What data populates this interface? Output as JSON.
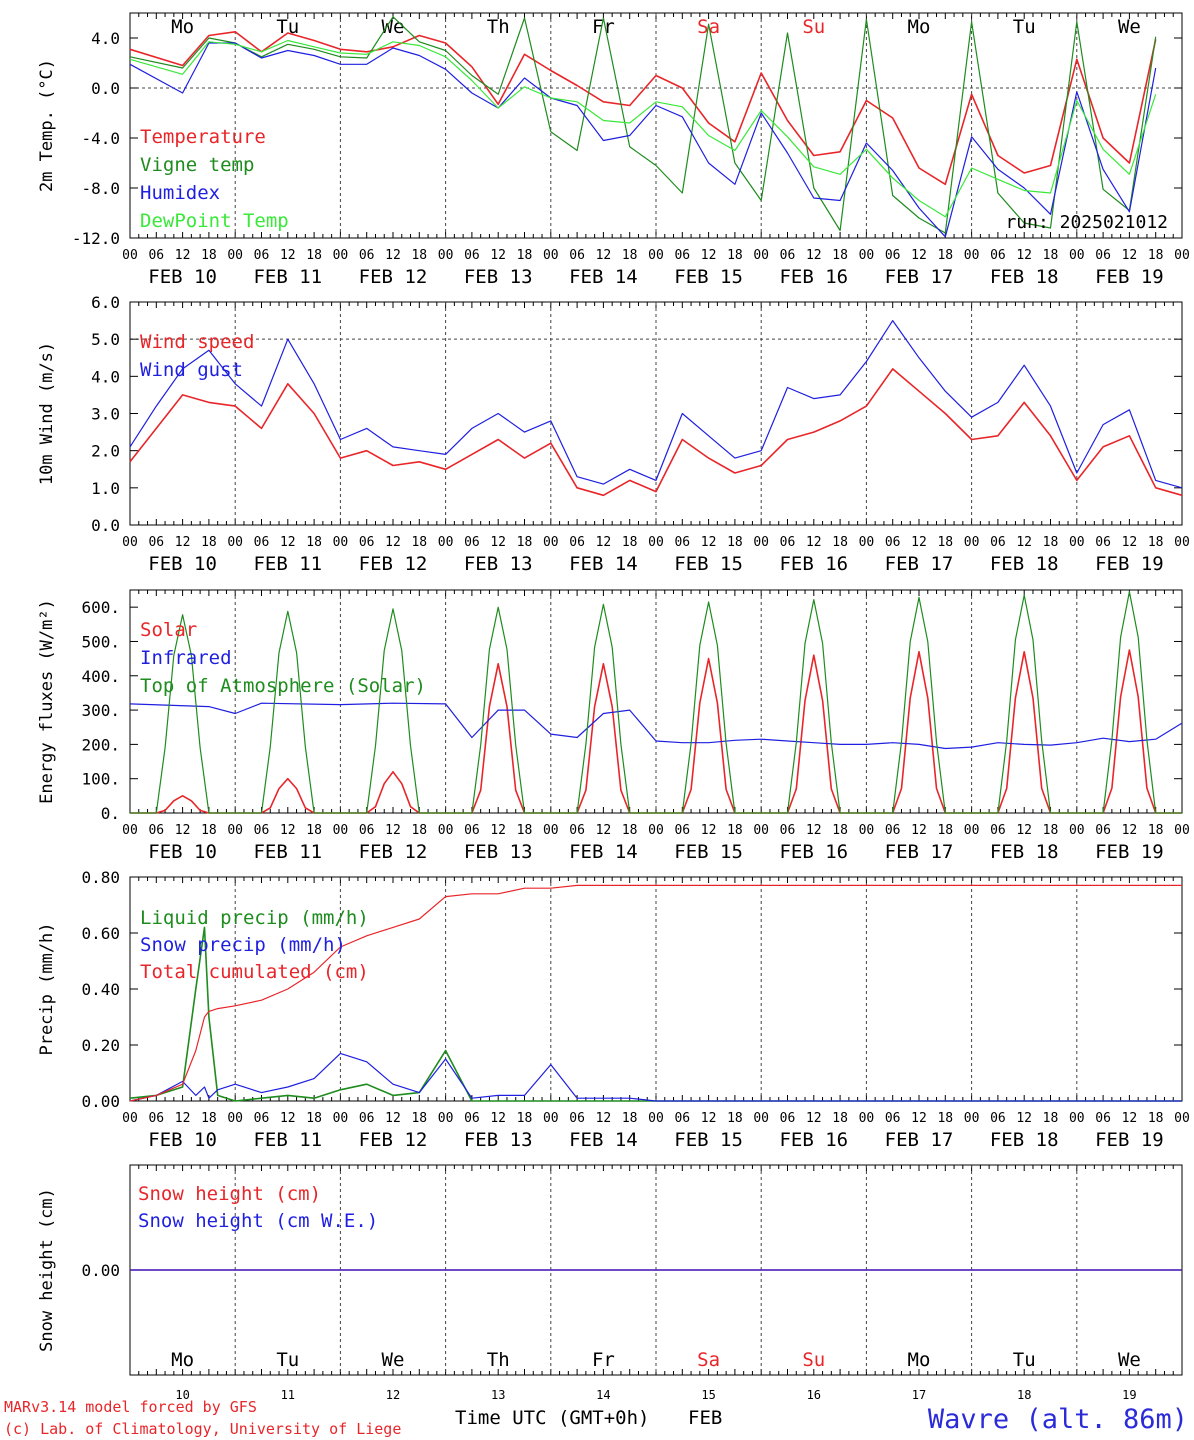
{
  "days": [
    "10",
    "11",
    "12",
    "13",
    "14",
    "15",
    "16",
    "17",
    "18",
    "19"
  ],
  "month": "FEB",
  "weekdays": [
    {
      "label": "Mo",
      "color": "#000000"
    },
    {
      "label": "Tu",
      "color": "#000000"
    },
    {
      "label": "We",
      "color": "#000000"
    },
    {
      "label": "Th",
      "color": "#000000"
    },
    {
      "label": "Fr",
      "color": "#000000"
    },
    {
      "label": "Sa",
      "color": "#e8262a"
    },
    {
      "label": "Su",
      "color": "#e8262a"
    },
    {
      "label": "Mo",
      "color": "#000000"
    },
    {
      "label": "Tu",
      "color": "#000000"
    },
    {
      "label": "We",
      "color": "#000000"
    }
  ],
  "hour_ticks": [
    "00",
    "06",
    "12",
    "18"
  ],
  "run_label": "run: 2025021012",
  "footer": {
    "credit_line1": "MARv3.14 model forced by GFS",
    "credit_line2": "(c) Lab. of Climatology, University of Liege",
    "xlabel": "Time UTC (GMT+0h)",
    "month_label": "FEB",
    "station": "Wavre (alt. 86m)"
  },
  "chart_data": [
    {
      "type": "line",
      "ylabel": "2m Temp. (°C)",
      "ylim": [
        -12,
        6
      ],
      "yticks": [
        "-12.0",
        "-8.0",
        "-4.0",
        "0.0",
        "4.0"
      ],
      "ref_line": 0,
      "x_hours": [
        0,
        12,
        18,
        24,
        30,
        36,
        42,
        48,
        54,
        60,
        66,
        72,
        78,
        84,
        90,
        96,
        102,
        108,
        114,
        120,
        126,
        132,
        138,
        144,
        150,
        156,
        162,
        168,
        174,
        180,
        186,
        192,
        198,
        204,
        210,
        216,
        222,
        228,
        234
      ],
      "series": [
        {
          "name": "Temperature",
          "color": "#e8262a",
          "values": [
            3.1,
            1.8,
            4.2,
            4.5,
            2.9,
            4.4,
            3.8,
            3.1,
            2.9,
            3.3,
            4.2,
            3.6,
            1.7,
            -1.3,
            2.7,
            1.4,
            0.2,
            -1.1,
            -1.4,
            1.0,
            0.0,
            -2.8,
            -4.3,
            1.2,
            -2.6,
            -5.4,
            -5.1,
            -1.0,
            -2.4,
            -6.4,
            -7.7,
            -0.5,
            -5.4,
            -6.8,
            -6.2,
            2.3,
            -4.0,
            -6.0,
            3.9
          ]
        },
        {
          "name": "Vigne temp",
          "color": "#1e8c1e",
          "values": [
            2.5,
            1.6,
            4.0,
            3.6,
            2.5,
            3.5,
            3.1,
            2.5,
            2.4,
            5.7,
            3.7,
            3.0,
            1.0,
            -0.5,
            5.6,
            -3.5,
            -5.0,
            5.6,
            -4.7,
            -6.2,
            -8.4,
            5.1,
            -6.0,
            -9.0,
            4.4,
            -8.0,
            -11.4,
            5.5,
            -8.6,
            -10.4,
            -11.6,
            5.3,
            -8.4,
            -10.8,
            -11.2,
            5.3,
            -8.1,
            -9.8,
            4.1
          ]
        },
        {
          "name": "Humidex",
          "color": "#1f1fe0",
          "values": [
            1.9,
            -0.4,
            3.6,
            3.6,
            2.4,
            3.0,
            2.6,
            1.9,
            1.9,
            3.2,
            2.6,
            1.5,
            -0.4,
            -1.6,
            0.8,
            -0.8,
            -1.4,
            -4.2,
            -3.8,
            -1.4,
            -2.3,
            -6.0,
            -7.7,
            -2.0,
            -5.2,
            -8.8,
            -9.0,
            -4.4,
            -6.6,
            -9.6,
            -11.9,
            -3.9,
            -6.5,
            -8.0,
            -10.1,
            -0.3,
            -6.5,
            -9.9,
            1.6
          ]
        },
        {
          "name": "DewPoint Temp",
          "color": "#3ae83a",
          "values": [
            2.3,
            1.1,
            3.7,
            3.5,
            2.9,
            3.8,
            3.3,
            2.8,
            2.7,
            3.7,
            3.4,
            2.5,
            0.6,
            -1.6,
            0.1,
            -0.8,
            -1.1,
            -2.6,
            -2.8,
            -1.1,
            -1.5,
            -3.8,
            -5.0,
            -1.8,
            -3.9,
            -6.3,
            -6.9,
            -4.9,
            -7.2,
            -9.0,
            -10.3,
            -6.4,
            -7.3,
            -8.2,
            -8.4,
            -1.0,
            -4.9,
            -6.9,
            -0.5
          ]
        }
      ]
    },
    {
      "type": "line",
      "ylabel": "10m Wind (m/s)",
      "ylim": [
        0,
        6
      ],
      "yticks": [
        "0.0",
        "1.0",
        "2.0",
        "3.0",
        "4.0",
        "5.0",
        "6.0"
      ],
      "ref_line": 5,
      "x_hours": [
        0,
        6,
        12,
        18,
        24,
        30,
        36,
        42,
        48,
        54,
        60,
        66,
        72,
        78,
        84,
        90,
        96,
        102,
        108,
        114,
        120,
        126,
        132,
        138,
        144,
        150,
        156,
        162,
        168,
        174,
        180,
        186,
        192,
        198,
        204,
        210,
        216,
        222,
        228,
        234,
        240
      ],
      "series": [
        {
          "name": "Wind speed",
          "color": "#e8262a",
          "values": [
            1.7,
            2.6,
            3.5,
            3.3,
            3.2,
            2.6,
            3.8,
            3.0,
            1.8,
            2.0,
            1.6,
            1.7,
            1.5,
            1.9,
            2.3,
            1.8,
            2.2,
            1.0,
            0.8,
            1.2,
            0.9,
            2.3,
            1.8,
            1.4,
            1.6,
            2.3,
            2.5,
            2.8,
            3.2,
            4.2,
            3.6,
            3.0,
            2.3,
            2.4,
            3.3,
            2.4,
            1.2,
            2.1,
            2.4,
            1.0,
            0.8
          ]
        },
        {
          "name": "Wind gust",
          "color": "#1f1fe0",
          "values": [
            2.1,
            3.2,
            4.2,
            4.7,
            3.8,
            3.2,
            5.0,
            3.8,
            2.3,
            2.6,
            2.1,
            2.0,
            1.9,
            2.6,
            3.0,
            2.5,
            2.8,
            1.3,
            1.1,
            1.5,
            1.2,
            3.0,
            2.4,
            1.8,
            2.0,
            3.7,
            3.4,
            3.5,
            4.4,
            5.5,
            4.5,
            3.6,
            2.9,
            3.3,
            4.3,
            3.2,
            1.4,
            2.7,
            3.1,
            1.2,
            1.0
          ]
        }
      ]
    },
    {
      "type": "line",
      "ylabel": "Energy fluxes (W/m²)",
      "ylim": [
        0,
        650
      ],
      "yticks": [
        "0.",
        "100.",
        "200.",
        "300.",
        "400.",
        "500.",
        "600."
      ],
      "series": [
        {
          "name": "Solar",
          "color": "#e8262a",
          "peaks": [
            50,
            100,
            120,
            435,
            435,
            450,
            460,
            470,
            470,
            475
          ]
        },
        {
          "name": "Infrared",
          "color": "#1f1fe0",
          "x_hours": [
            0,
            18,
            24,
            30,
            48,
            60,
            72,
            78,
            84,
            90,
            96,
            102,
            108,
            114,
            120,
            126,
            132,
            138,
            144,
            150,
            156,
            162,
            168,
            174,
            180,
            186,
            192,
            198,
            204,
            210,
            216,
            222,
            228,
            234,
            240
          ],
          "values": [
            318,
            310,
            290,
            320,
            316,
            320,
            318,
            220,
            300,
            300,
            230,
            220,
            290,
            300,
            210,
            205,
            205,
            212,
            215,
            210,
            205,
            200,
            200,
            205,
            200,
            188,
            192,
            205,
            200,
            198,
            205,
            218,
            208,
            215,
            262
          ]
        },
        {
          "name": "Top of Atmosphere (Solar)",
          "color": "#1e8c1e",
          "peaks": [
            578,
            588,
            595,
            600,
            608,
            615,
            622,
            628,
            635,
            645
          ]
        }
      ]
    },
    {
      "type": "line",
      "ylabel": "Precip (mm/h)",
      "ylim": [
        0,
        0.8
      ],
      "yticks": [
        "0.00",
        "0.20",
        "0.40",
        "0.60",
        "0.80"
      ],
      "x_hours": [
        0,
        6,
        12,
        15,
        17,
        18,
        20,
        24,
        30,
        36,
        42,
        48,
        54,
        60,
        66,
        72,
        78,
        84,
        90,
        96,
        102,
        108,
        114,
        120,
        126,
        132,
        138,
        144,
        150,
        156,
        162,
        168,
        174,
        180,
        186,
        192,
        198,
        204,
        210,
        216,
        222,
        228,
        234,
        240
      ],
      "series": [
        {
          "name": "Liquid precip (mm/h)",
          "color": "#1e8c1e",
          "values": [
            0.01,
            0.02,
            0.05,
            0.4,
            0.62,
            0.3,
            0.02,
            0.0,
            0.01,
            0.02,
            0.01,
            0.04,
            0.06,
            0.02,
            0.03,
            0.18,
            0.0,
            0.0,
            0.0,
            0.0,
            0.0,
            0.0,
            0.0,
            0.0,
            0.0,
            0.0,
            0.0,
            0.0,
            0.0,
            0.0,
            0.0,
            0.0,
            0.0,
            0.0,
            0.0,
            0.0,
            0.0,
            0.0,
            0.0,
            0.0,
            0.0,
            0.0,
            0.0,
            0.0
          ]
        },
        {
          "name": "Snow precip (mm/h)",
          "color": "#1f1fe0",
          "values": [
            0.0,
            0.02,
            0.07,
            0.02,
            0.05,
            0.01,
            0.04,
            0.06,
            0.03,
            0.05,
            0.08,
            0.17,
            0.14,
            0.06,
            0.03,
            0.15,
            0.01,
            0.02,
            0.02,
            0.13,
            0.01,
            0.01,
            0.01,
            0.0,
            0.0,
            0.0,
            0.0,
            0.0,
            0.0,
            0.0,
            0.0,
            0.0,
            0.0,
            0.0,
            0.0,
            0.0,
            0.0,
            0.0,
            0.0,
            0.0,
            0.0,
            0.0,
            0.0,
            0.0
          ]
        },
        {
          "name": "Total cumulated (cm)",
          "color": "#e8262a",
          "values": [
            0.0,
            0.02,
            0.06,
            0.18,
            0.3,
            0.32,
            0.33,
            0.34,
            0.36,
            0.4,
            0.46,
            0.55,
            0.59,
            0.62,
            0.65,
            0.73,
            0.74,
            0.74,
            0.76,
            0.76,
            0.77,
            0.77,
            0.77,
            0.77,
            0.77,
            0.77,
            0.77,
            0.77,
            0.77,
            0.77,
            0.77,
            0.77,
            0.77,
            0.77,
            0.77,
            0.77,
            0.77,
            0.77,
            0.77,
            0.77,
            0.77,
            0.77,
            0.77,
            0.77
          ]
        }
      ]
    },
    {
      "type": "line",
      "ylabel": "Snow height (cm)",
      "ylim": [
        -1,
        1
      ],
      "yticks": [
        "0.00"
      ],
      "series": [
        {
          "name": "Snow height (cm)",
          "color": "#e8262a",
          "values": [
            0,
            0
          ]
        },
        {
          "name": "Snow height (cm W.E.)",
          "color": "#1f1fe0",
          "values": [
            0,
            0
          ]
        }
      ]
    }
  ]
}
